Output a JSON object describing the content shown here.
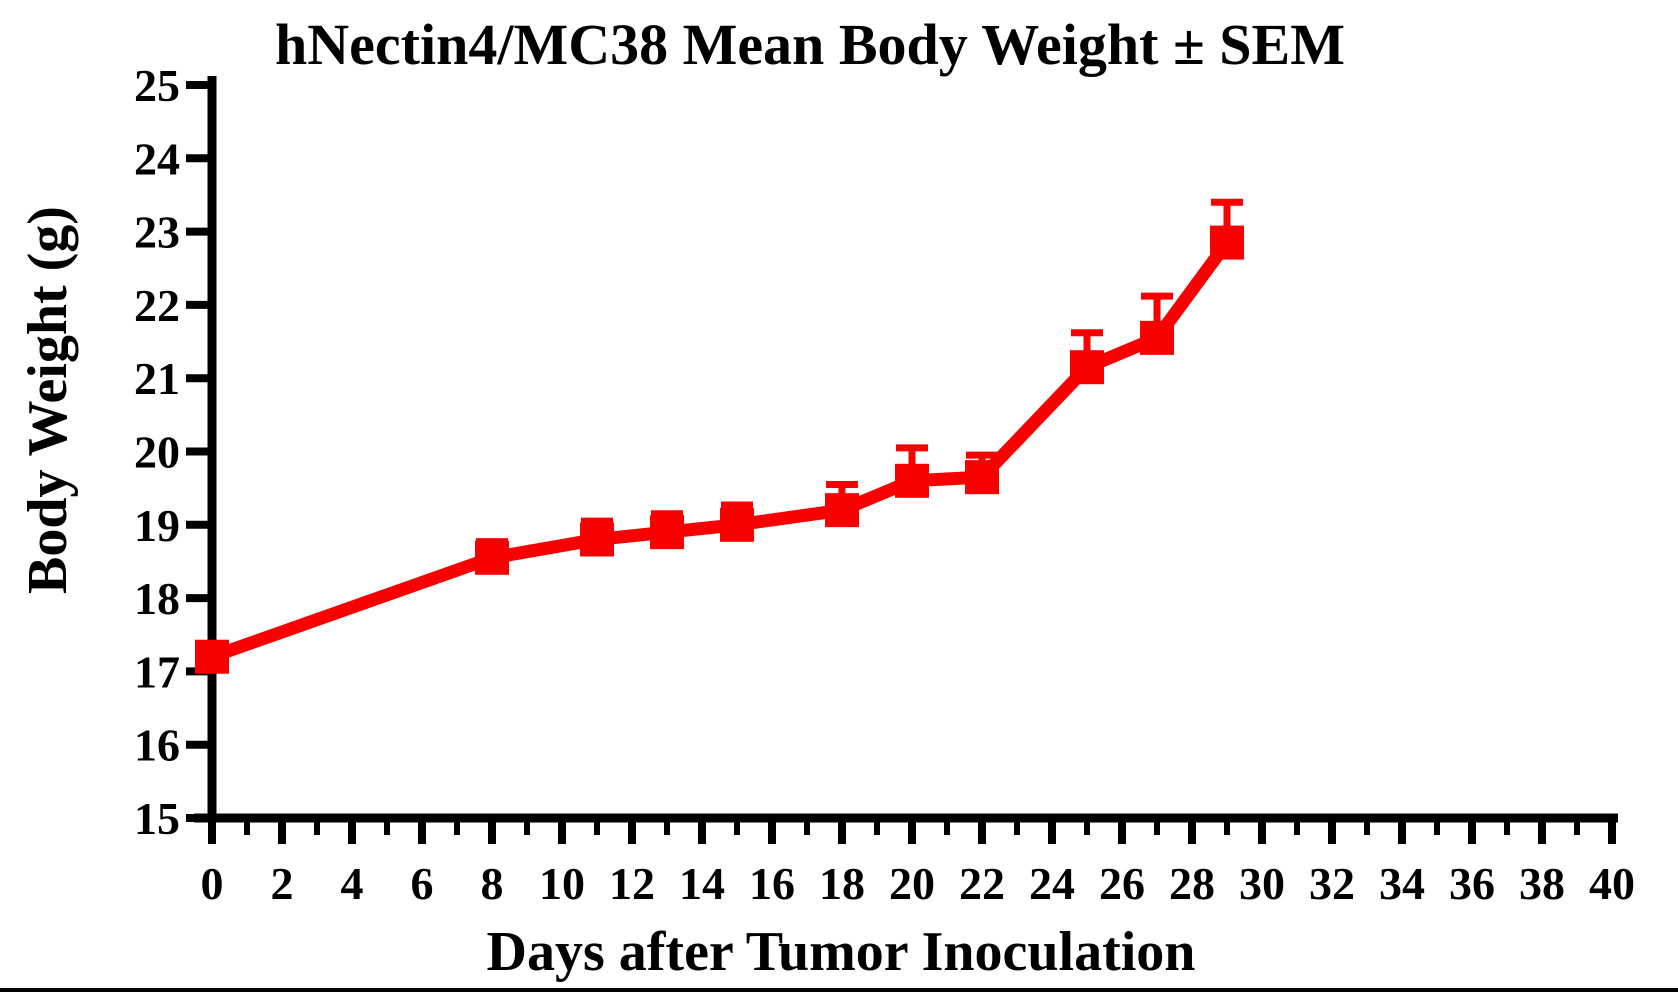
{
  "chart_data": {
    "type": "line",
    "title": "hNectin4/MC38 Mean Body Weight ± SEM",
    "xlabel": "Days after Tumor Inoculation",
    "ylabel": "Body Weight (g)",
    "xlim": [
      0,
      40
    ],
    "ylim": [
      15,
      25
    ],
    "x_major_tick_step": 2,
    "x_minor_tick_step": 1,
    "y_tick_step": 1,
    "x_tick_labels": [
      "0",
      "2",
      "4",
      "6",
      "8",
      "10",
      "12",
      "14",
      "16",
      "18",
      "20",
      "22",
      "24",
      "26",
      "28",
      "30",
      "32",
      "34",
      "36",
      "38",
      "40"
    ],
    "y_tick_labels": [
      "15",
      "16",
      "17",
      "18",
      "19",
      "20",
      "21",
      "22",
      "23",
      "24",
      "25"
    ],
    "grid": false,
    "legend": "none",
    "series": [
      {
        "name": "hNectin4/MC38",
        "marker": "square",
        "error_bars": "upper",
        "x": [
          0,
          8,
          11,
          13,
          15,
          18,
          20,
          22,
          25,
          27,
          29
        ],
        "y": [
          17.2,
          18.55,
          18.8,
          18.9,
          19.0,
          19.2,
          19.6,
          19.65,
          21.15,
          21.55,
          22.85
        ],
        "sem": [
          0,
          0.22,
          0.25,
          0.25,
          0.27,
          0.35,
          0.45,
          0.3,
          0.47,
          0.57,
          0.55
        ]
      }
    ]
  },
  "colors": {
    "series": "#f80000",
    "axis": "#000000",
    "background": "#ffffff"
  }
}
